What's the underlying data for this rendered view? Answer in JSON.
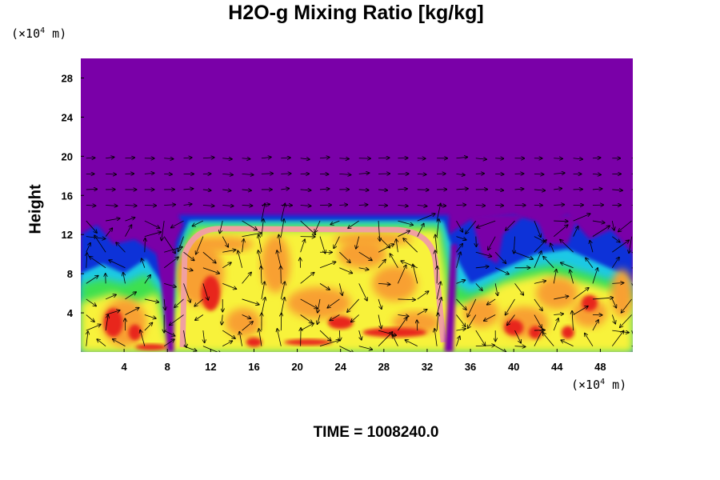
{
  "chart_data": {
    "type": "heatmap",
    "title": "H2O-g Mixing Ratio [kg/kg]",
    "ylabel": "Height",
    "xunit": "(×10",
    "xunit_exp": "4",
    "xunit_suffix": " m)",
    "yunit": "(×10",
    "yunit_exp": "4",
    "yunit_suffix": " m)",
    "time_label": "TIME = 1008240.0",
    "x_ticks": [
      "4",
      "8",
      "12",
      "16",
      "20",
      "24",
      "28",
      "32",
      "36",
      "40",
      "44",
      "48"
    ],
    "y_ticks": [
      "4",
      "8",
      "12",
      "16",
      "20",
      "24",
      "28"
    ],
    "xlim": [
      0,
      51
    ],
    "ylim": [
      0,
      30
    ],
    "colors": {
      "background": "#7a00a8",
      "blue": "#1030d8",
      "cyan": "#1ec8e6",
      "green": "#3ee050",
      "yellow": "#f8f23a",
      "orange": "#f8a030",
      "red": "#e8281c",
      "pink": "#f0a0a0"
    }
  }
}
